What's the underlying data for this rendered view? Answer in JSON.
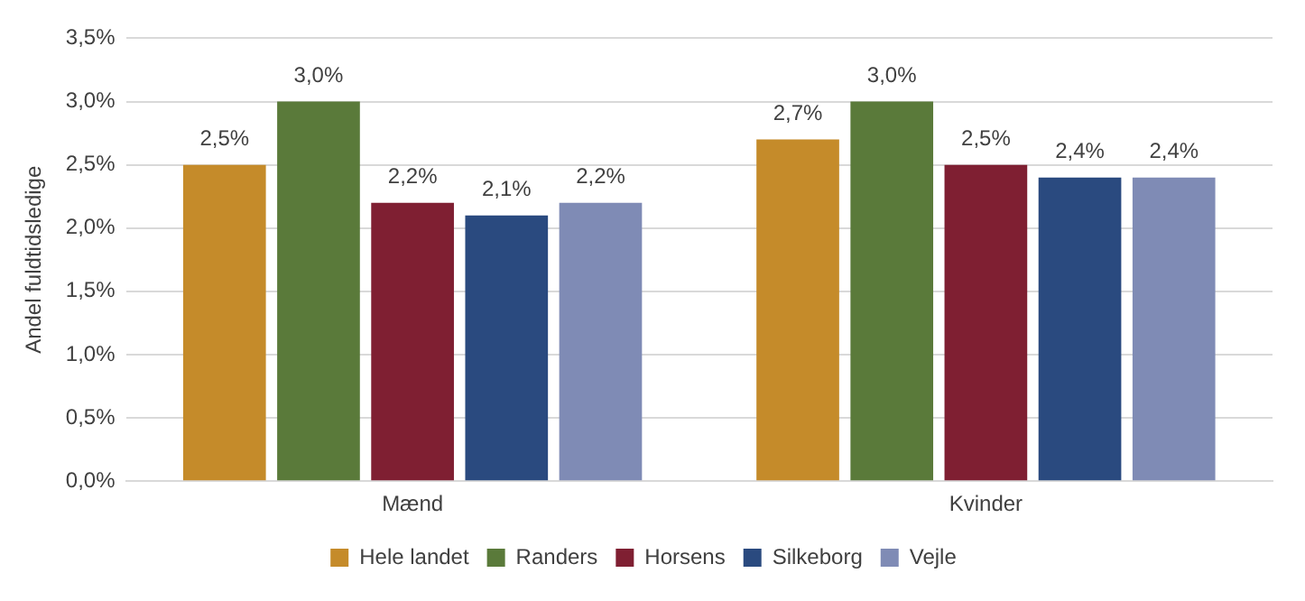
{
  "chart_data": {
    "type": "bar",
    "ylabel": "Andel fuldtidsledige",
    "categories": [
      "Mænd",
      "Kvinder"
    ],
    "series": [
      {
        "name": "Hele landet",
        "color": "#c58b2a",
        "values": [
          2.5,
          2.7
        ],
        "value_labels": [
          "2,5%",
          "2,7%"
        ]
      },
      {
        "name": "Randers",
        "color": "#5a7a3a",
        "values": [
          3.0,
          3.0
        ],
        "value_labels": [
          "3,0%",
          "3,0%"
        ]
      },
      {
        "name": "Horsens",
        "color": "#7f1f32",
        "values": [
          2.2,
          2.5
        ],
        "value_labels": [
          "2,2%",
          "2,5%"
        ]
      },
      {
        "name": "Silkeborg",
        "color": "#2a4a7f",
        "values": [
          2.1,
          2.4
        ],
        "value_labels": [
          "2,1%",
          "2,4%"
        ]
      },
      {
        "name": "Vejle",
        "color": "#7f8bb5",
        "values": [
          2.2,
          2.4
        ],
        "value_labels": [
          "2,2%",
          "2,4%"
        ]
      }
    ],
    "ylim": [
      0,
      3.5
    ],
    "yticks": [
      {
        "value": 0,
        "label": "0,0%"
      },
      {
        "value": 0.5,
        "label": "0,5%"
      },
      {
        "value": 1,
        "label": "1,0%"
      },
      {
        "value": 1.5,
        "label": "1,5%"
      },
      {
        "value": 2,
        "label": "2,0%"
      },
      {
        "value": 2.5,
        "label": "2,5%"
      },
      {
        "value": 3,
        "label": "3,0%"
      },
      {
        "value": 3.5,
        "label": "3,5%"
      }
    ],
    "grid": "y",
    "legend": "bottom"
  }
}
